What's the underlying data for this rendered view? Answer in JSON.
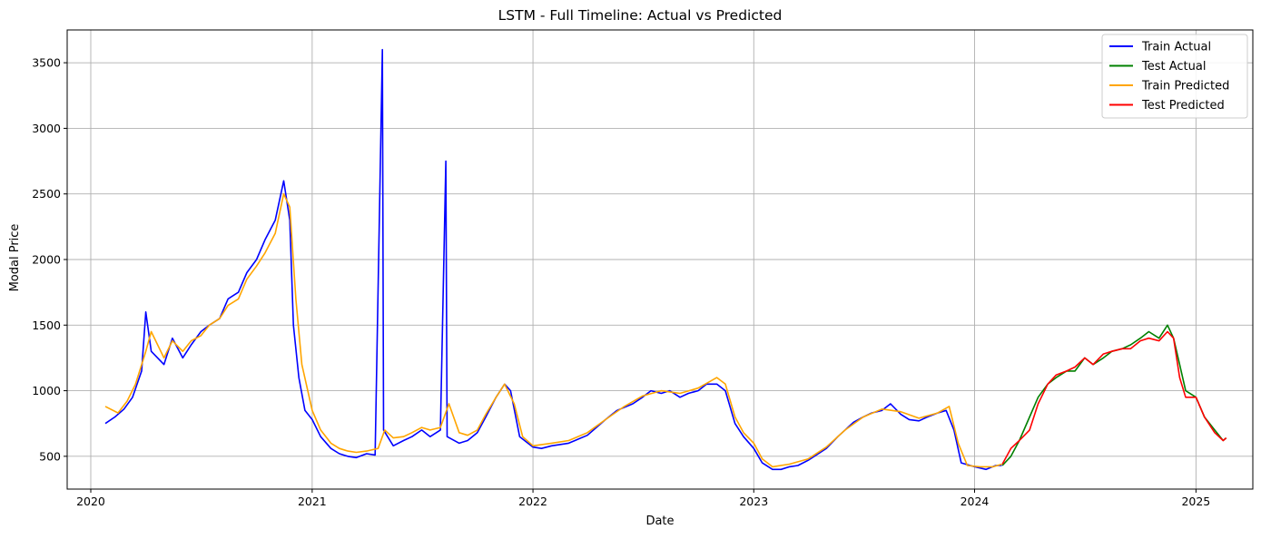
{
  "chart_data": {
    "type": "line",
    "title": "LSTM - Full Timeline: Actual vs Predicted",
    "xlabel": "Date",
    "ylabel": "Modal Price",
    "xlim": [
      "2019-11-23",
      "2025-04-05"
    ],
    "ylim": [
      250,
      3750
    ],
    "x_ticks": [
      "2020",
      "2021",
      "2022",
      "2023",
      "2024",
      "2025"
    ],
    "y_ticks": [
      500,
      1000,
      1500,
      2000,
      2500,
      3000,
      3500
    ],
    "grid": true,
    "legend_position": "top-right",
    "legend": [
      "Train Actual",
      "Test Actual",
      "Train Predicted",
      "Test Predicted"
    ],
    "colors": {
      "Train Actual": "#0000ff",
      "Test Actual": "#008000",
      "Train Predicted": "#ffa500",
      "Test Predicted": "#ff0000"
    },
    "series": [
      {
        "name": "Train Actual",
        "points": [
          [
            "2020-01-25",
            750
          ],
          [
            "2020-02-10",
            800
          ],
          [
            "2020-02-25",
            860
          ],
          [
            "2020-03-10",
            950
          ],
          [
            "2020-03-25",
            1150
          ],
          [
            "2020-04-01",
            1600
          ],
          [
            "2020-04-10",
            1300
          ],
          [
            "2020-05-01",
            1200
          ],
          [
            "2020-05-15",
            1400
          ],
          [
            "2020-06-01",
            1250
          ],
          [
            "2020-06-15",
            1350
          ],
          [
            "2020-07-01",
            1450
          ],
          [
            "2020-07-15",
            1500
          ],
          [
            "2020-08-01",
            1550
          ],
          [
            "2020-08-15",
            1700
          ],
          [
            "2020-09-01",
            1750
          ],
          [
            "2020-09-15",
            1900
          ],
          [
            "2020-10-01",
            2000
          ],
          [
            "2020-10-15",
            2150
          ],
          [
            "2020-11-01",
            2300
          ],
          [
            "2020-11-15",
            2600
          ],
          [
            "2020-11-25",
            2300
          ],
          [
            "2020-12-01",
            1500
          ],
          [
            "2020-12-10",
            1100
          ],
          [
            "2020-12-20",
            850
          ],
          [
            "2021-01-01",
            780
          ],
          [
            "2021-01-15",
            650
          ],
          [
            "2021-02-01",
            560
          ],
          [
            "2021-02-15",
            520
          ],
          [
            "2021-03-01",
            500
          ],
          [
            "2021-03-15",
            490
          ],
          [
            "2021-04-01",
            520
          ],
          [
            "2021-04-15",
            510
          ],
          [
            "2021-04-27",
            3600
          ],
          [
            "2021-04-29",
            700
          ],
          [
            "2021-05-15",
            580
          ],
          [
            "2021-06-01",
            620
          ],
          [
            "2021-06-15",
            650
          ],
          [
            "2021-07-01",
            700
          ],
          [
            "2021-07-15",
            650
          ],
          [
            "2021-08-01",
            700
          ],
          [
            "2021-08-10",
            2750
          ],
          [
            "2021-08-12",
            650
          ],
          [
            "2021-09-01",
            600
          ],
          [
            "2021-09-15",
            620
          ],
          [
            "2021-10-01",
            680
          ],
          [
            "2021-10-15",
            800
          ],
          [
            "2021-11-01",
            950
          ],
          [
            "2021-11-15",
            1050
          ],
          [
            "2021-11-25",
            1000
          ],
          [
            "2021-12-10",
            650
          ],
          [
            "2022-01-01",
            570
          ],
          [
            "2022-01-15",
            560
          ],
          [
            "2022-02-01",
            580
          ],
          [
            "2022-03-01",
            600
          ],
          [
            "2022-04-01",
            660
          ],
          [
            "2022-05-01",
            780
          ],
          [
            "2022-05-20",
            850
          ],
          [
            "2022-06-15",
            900
          ],
          [
            "2022-07-01",
            950
          ],
          [
            "2022-07-15",
            1000
          ],
          [
            "2022-08-01",
            980
          ],
          [
            "2022-08-15",
            1000
          ],
          [
            "2022-09-01",
            950
          ],
          [
            "2022-09-15",
            980
          ],
          [
            "2022-10-01",
            1000
          ],
          [
            "2022-10-15",
            1050
          ],
          [
            "2022-11-01",
            1050
          ],
          [
            "2022-11-15",
            1000
          ],
          [
            "2022-12-01",
            750
          ],
          [
            "2022-12-15",
            650
          ],
          [
            "2023-01-01",
            560
          ],
          [
            "2023-01-15",
            450
          ],
          [
            "2023-02-01",
            400
          ],
          [
            "2023-02-15",
            400
          ],
          [
            "2023-03-01",
            420
          ],
          [
            "2023-03-15",
            430
          ],
          [
            "2023-04-01",
            470
          ],
          [
            "2023-05-01",
            560
          ],
          [
            "2023-05-20",
            650
          ],
          [
            "2023-06-15",
            760
          ],
          [
            "2023-07-01",
            800
          ],
          [
            "2023-07-15",
            830
          ],
          [
            "2023-08-01",
            850
          ],
          [
            "2023-08-15",
            900
          ],
          [
            "2023-09-01",
            820
          ],
          [
            "2023-09-15",
            780
          ],
          [
            "2023-10-01",
            770
          ],
          [
            "2023-10-15",
            800
          ],
          [
            "2023-11-01",
            830
          ],
          [
            "2023-11-15",
            850
          ],
          [
            "2023-11-28",
            700
          ],
          [
            "2023-12-10",
            450
          ],
          [
            "2024-01-01",
            420
          ],
          [
            "2024-01-20",
            400
          ],
          [
            "2024-02-05",
            430
          ],
          [
            "2024-02-15",
            430
          ]
        ]
      },
      {
        "name": "Test Actual",
        "points": [
          [
            "2024-02-16",
            430
          ],
          [
            "2024-03-01",
            500
          ],
          [
            "2024-03-15",
            620
          ],
          [
            "2024-04-01",
            800
          ],
          [
            "2024-04-15",
            950
          ],
          [
            "2024-05-01",
            1050
          ],
          [
            "2024-05-15",
            1100
          ],
          [
            "2024-06-01",
            1150
          ],
          [
            "2024-06-15",
            1150
          ],
          [
            "2024-07-01",
            1250
          ],
          [
            "2024-07-15",
            1200
          ],
          [
            "2024-08-01",
            1250
          ],
          [
            "2024-08-15",
            1300
          ],
          [
            "2024-09-01",
            1320
          ],
          [
            "2024-09-15",
            1350
          ],
          [
            "2024-10-01",
            1400
          ],
          [
            "2024-10-15",
            1450
          ],
          [
            "2024-11-01",
            1400
          ],
          [
            "2024-11-15",
            1500
          ],
          [
            "2024-11-25",
            1400
          ],
          [
            "2024-12-05",
            1200
          ],
          [
            "2024-12-15",
            1000
          ],
          [
            "2025-01-01",
            950
          ],
          [
            "2025-01-15",
            800
          ],
          [
            "2025-02-01",
            700
          ],
          [
            "2025-02-15",
            620
          ],
          [
            "2025-02-20",
            640
          ]
        ]
      },
      {
        "name": "Train Predicted",
        "points": [
          [
            "2020-01-25",
            880
          ],
          [
            "2020-02-15",
            830
          ],
          [
            "2020-03-01",
            920
          ],
          [
            "2020-03-15",
            1050
          ],
          [
            "2020-04-01",
            1300
          ],
          [
            "2020-04-10",
            1450
          ],
          [
            "2020-05-01",
            1250
          ],
          [
            "2020-05-15",
            1380
          ],
          [
            "2020-06-01",
            1300
          ],
          [
            "2020-06-15",
            1380
          ],
          [
            "2020-07-01",
            1420
          ],
          [
            "2020-07-15",
            1500
          ],
          [
            "2020-08-01",
            1550
          ],
          [
            "2020-08-15",
            1650
          ],
          [
            "2020-09-01",
            1700
          ],
          [
            "2020-09-15",
            1850
          ],
          [
            "2020-10-01",
            1950
          ],
          [
            "2020-10-15",
            2050
          ],
          [
            "2020-11-01",
            2200
          ],
          [
            "2020-11-15",
            2500
          ],
          [
            "2020-11-25",
            2400
          ],
          [
            "2020-12-05",
            1700
          ],
          [
            "2020-12-15",
            1200
          ],
          [
            "2021-01-01",
            850
          ],
          [
            "2021-01-15",
            700
          ],
          [
            "2021-02-01",
            600
          ],
          [
            "2021-02-15",
            560
          ],
          [
            "2021-03-01",
            540
          ],
          [
            "2021-03-15",
            530
          ],
          [
            "2021-04-01",
            540
          ],
          [
            "2021-04-20",
            560
          ],
          [
            "2021-05-01",
            700
          ],
          [
            "2021-05-15",
            640
          ],
          [
            "2021-06-01",
            650
          ],
          [
            "2021-06-15",
            680
          ],
          [
            "2021-07-01",
            720
          ],
          [
            "2021-07-15",
            700
          ],
          [
            "2021-08-01",
            720
          ],
          [
            "2021-08-15",
            900
          ],
          [
            "2021-09-01",
            680
          ],
          [
            "2021-09-15",
            660
          ],
          [
            "2021-10-01",
            700
          ],
          [
            "2021-10-15",
            820
          ],
          [
            "2021-11-01",
            950
          ],
          [
            "2021-11-15",
            1050
          ],
          [
            "2021-12-01",
            900
          ],
          [
            "2021-12-15",
            650
          ],
          [
            "2022-01-01",
            580
          ],
          [
            "2022-02-01",
            600
          ],
          [
            "2022-03-01",
            620
          ],
          [
            "2022-04-01",
            680
          ],
          [
            "2022-05-01",
            780
          ],
          [
            "2022-06-01",
            880
          ],
          [
            "2022-07-01",
            960
          ],
          [
            "2022-08-01",
            1000
          ],
          [
            "2022-09-01",
            980
          ],
          [
            "2022-10-01",
            1020
          ],
          [
            "2022-11-01",
            1100
          ],
          [
            "2022-11-15",
            1050
          ],
          [
            "2022-12-01",
            800
          ],
          [
            "2022-12-15",
            680
          ],
          [
            "2023-01-01",
            600
          ],
          [
            "2023-01-15",
            480
          ],
          [
            "2023-02-01",
            420
          ],
          [
            "2023-03-01",
            440
          ],
          [
            "2023-04-01",
            480
          ],
          [
            "2023-05-01",
            570
          ],
          [
            "2023-06-01",
            700
          ],
          [
            "2023-07-01",
            800
          ],
          [
            "2023-08-01",
            860
          ],
          [
            "2023-09-01",
            840
          ],
          [
            "2023-10-01",
            790
          ],
          [
            "2023-11-01",
            830
          ],
          [
            "2023-11-20",
            880
          ],
          [
            "2023-12-05",
            600
          ],
          [
            "2023-12-20",
            430
          ],
          [
            "2024-01-10",
            420
          ],
          [
            "2024-02-01",
            420
          ],
          [
            "2024-02-15",
            440
          ]
        ]
      },
      {
        "name": "Test Predicted",
        "points": [
          [
            "2024-02-16",
            440
          ],
          [
            "2024-03-01",
            560
          ],
          [
            "2024-03-15",
            620
          ],
          [
            "2024-04-01",
            700
          ],
          [
            "2024-04-15",
            900
          ],
          [
            "2024-05-01",
            1050
          ],
          [
            "2024-05-15",
            1120
          ],
          [
            "2024-06-01",
            1150
          ],
          [
            "2024-06-15",
            1180
          ],
          [
            "2024-07-01",
            1250
          ],
          [
            "2024-07-15",
            1200
          ],
          [
            "2024-08-01",
            1280
          ],
          [
            "2024-08-15",
            1300
          ],
          [
            "2024-09-01",
            1320
          ],
          [
            "2024-09-15",
            1320
          ],
          [
            "2024-10-01",
            1380
          ],
          [
            "2024-10-15",
            1400
          ],
          [
            "2024-11-01",
            1380
          ],
          [
            "2024-11-15",
            1450
          ],
          [
            "2024-11-25",
            1400
          ],
          [
            "2024-12-05",
            1100
          ],
          [
            "2024-12-15",
            950
          ],
          [
            "2025-01-01",
            950
          ],
          [
            "2025-01-15",
            800
          ],
          [
            "2025-02-01",
            680
          ],
          [
            "2025-02-15",
            620
          ],
          [
            "2025-02-20",
            640
          ]
        ]
      }
    ]
  }
}
